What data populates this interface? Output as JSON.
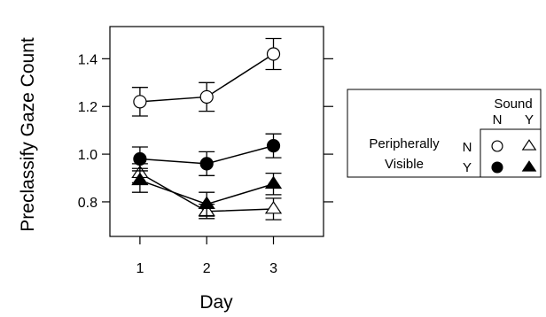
{
  "chart_data": {
    "type": "line",
    "xlabel": "Day",
    "ylabel": "Preclassify Gaze Count",
    "x": [
      1,
      2,
      3
    ],
    "x_ticks": [
      "1",
      "2",
      "3"
    ],
    "y_ticks": [
      "0.8",
      "1.0",
      "1.2",
      "1.4"
    ],
    "xlim": [
      0.55,
      3.75
    ],
    "ylim": [
      0.655,
      1.535
    ],
    "grid": false,
    "series": [
      {
        "peripherally_visible": "N",
        "sound": "N",
        "marker": "open-circle",
        "values": [
          1.22,
          1.24,
          1.42
        ],
        "err": [
          0.06,
          0.06,
          0.065
        ]
      },
      {
        "peripherally_visible": "N",
        "sound": "Y",
        "marker": "open-triangle",
        "values": [
          0.92,
          0.76,
          0.77
        ],
        "err": [
          0.04,
          0.03,
          0.045
        ]
      },
      {
        "peripherally_visible": "Y",
        "sound": "N",
        "marker": "filled-circle",
        "values": [
          0.98,
          0.96,
          1.035
        ],
        "err": [
          0.05,
          0.05,
          0.05
        ]
      },
      {
        "peripherally_visible": "Y",
        "sound": "Y",
        "marker": "filled-triangle",
        "values": [
          0.89,
          0.79,
          0.875
        ],
        "err": [
          0.05,
          0.05,
          0.045
        ]
      }
    ],
    "legend": {
      "placement": "right",
      "column_title": "Sound",
      "column_labels": [
        "N",
        "Y"
      ],
      "row_title_line1": "Peripherally",
      "row_title_line2": "Visible",
      "row_labels": [
        "N",
        "Y"
      ]
    }
  }
}
